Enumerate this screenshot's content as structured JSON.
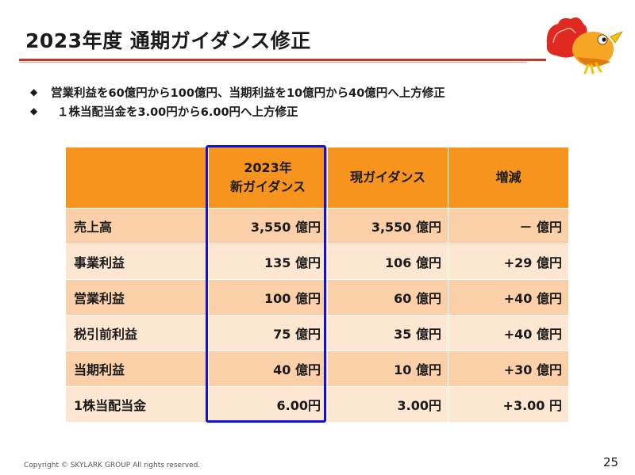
{
  "title": "2023年度 通期ガイダンス修正",
  "bullets": [
    "営業利益を60億円から100億円、当期利益を10億円から40億円へ上方修正",
    "１株当配当金を3.00円から6.00円へ上方修正"
  ],
  "bullet_icon": "diamond-icon",
  "table": {
    "headers": [
      "",
      "2023年\n新ガイダンス",
      "現ガイダンス",
      "増減"
    ],
    "header_new_line1": "2023年",
    "header_new_line2": "新ガイダンス",
    "header_current": "現ガイダンス",
    "header_change": "増減",
    "rows": [
      {
        "label": "売上高",
        "new": "3,550 億円",
        "current": "3,550 億円",
        "change": "－ 億円"
      },
      {
        "label": "事業利益",
        "new": "135 億円",
        "current": "106 億円",
        "change": "+29 億円"
      },
      {
        "label": "営業利益",
        "new": "100 億円",
        "current": "60 億円",
        "change": "+40 億円"
      },
      {
        "label": "税引前利益",
        "new": "75 億円",
        "current": "35 億円",
        "change": "+40 億円"
      },
      {
        "label": "当期利益",
        "new": "40 億円",
        "current": "10 億円",
        "change": "+30 億円"
      },
      {
        "label": "1株当配当金",
        "new": "6.00円",
        "current": "3.00円",
        "change": "+3.00 円"
      }
    ]
  },
  "colors": {
    "header_bg": "#f7941d",
    "row_dark": "#fbd0a8",
    "row_light": "#fde6d2",
    "highlight_border": "#1010e0",
    "title_rule": "#c0392b"
  },
  "logo_icon": "skylark-bird-logo-icon",
  "copyright": "Copyright © SKYLARK GROUP All rights reserved.",
  "page_number": "25"
}
